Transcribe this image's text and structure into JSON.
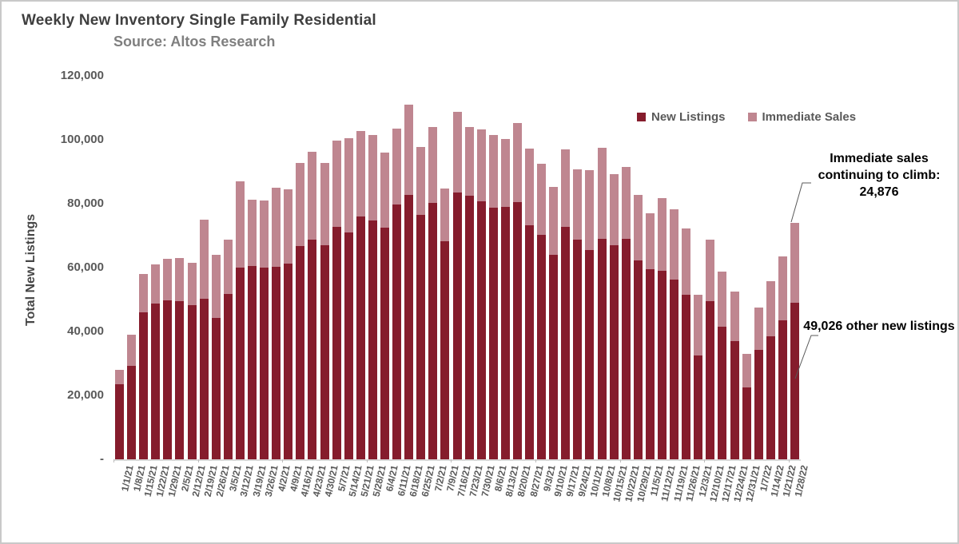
{
  "chart_data": {
    "type": "bar",
    "stacked": true,
    "title": "Weekly New Inventory Single Family Residential",
    "subtitle": "Source: Altos Research",
    "xlabel": "",
    "ylabel": "Total New Listings",
    "legend_position": "top-right-inside",
    "grid": false,
    "y_axis": {
      "min": 0,
      "max": 120000,
      "step": 20000,
      "zero_label": "-"
    },
    "categories": [
      "1/1/21",
      "1/8/21",
      "1/15/21",
      "1/22/21",
      "1/29/21",
      "2/5/21",
      "2/12/21",
      "2/19/21",
      "2/26/21",
      "3/5/21",
      "3/12/21",
      "3/19/21",
      "3/26/21",
      "4/2/21",
      "4/9/21",
      "4/16/21",
      "4/23/21",
      "4/30/21",
      "5/7/21",
      "5/14/21",
      "5/21/21",
      "5/28/21",
      "6/4/21",
      "6/11/21",
      "6/18/21",
      "6/25/21",
      "7/2/21",
      "7/9/21",
      "7/16/21",
      "7/23/21",
      "7/30/21",
      "8/6/21",
      "8/13/21",
      "8/20/21",
      "8/27/21",
      "9/3/21",
      "9/10/21",
      "9/17/21",
      "9/24/21",
      "10/1/21",
      "10/8/21",
      "10/15/21",
      "10/22/21",
      "10/29/21",
      "11/5/21",
      "11/12/21",
      "11/19/21",
      "11/26/21",
      "12/3/21",
      "12/10/21",
      "12/17/21",
      "12/24/21",
      "12/31/21",
      "1/7/22",
      "1/14/22",
      "1/21/22",
      "1/28/22"
    ],
    "series": [
      {
        "name": "New Listings",
        "color": "#851c2c",
        "values": [
          23500,
          29200,
          46000,
          48800,
          49700,
          49500,
          48300,
          50300,
          44300,
          51800,
          60000,
          60600,
          59900,
          60300,
          61200,
          66800,
          68800,
          67000,
          72800,
          70900,
          75900,
          74700,
          72400,
          79700,
          82800,
          76600,
          80300,
          68300,
          83400,
          82600,
          80800,
          78800,
          78900,
          80600,
          73300,
          70300,
          64100,
          72800,
          68700,
          65600,
          69100,
          67000,
          68900,
          62200,
          59500,
          59100,
          56200,
          51600,
          32400,
          49500,
          41500,
          37000,
          22500,
          34200,
          38500,
          43600,
          49026
        ]
      },
      {
        "name": "Immediate Sales",
        "color": "#bf8690",
        "values": [
          4500,
          9800,
          12000,
          12200,
          13000,
          13500,
          13200,
          24600,
          19700,
          17000,
          27000,
          20700,
          21100,
          24700,
          23300,
          26000,
          27500,
          25700,
          26900,
          29500,
          26900,
          26900,
          23500,
          23800,
          28100,
          21200,
          23800,
          16400,
          25400,
          21500,
          22500,
          22800,
          21300,
          24700,
          24000,
          22100,
          21100,
          24200,
          22100,
          25000,
          28300,
          22300,
          22700,
          20600,
          17500,
          22700,
          22100,
          20600,
          19200,
          19200,
          17300,
          15500,
          10500,
          13400,
          17200,
          19800,
          24876
        ]
      }
    ],
    "annotations": [
      {
        "text": "Immediate sales continuing to climb: 24,876",
        "value": 24876,
        "target_category": "1/28/22",
        "target_series": "Immediate Sales"
      },
      {
        "text": "49,026 other new listings",
        "value": 49026,
        "target_category": "1/28/22",
        "target_series": "New Listings"
      }
    ]
  }
}
